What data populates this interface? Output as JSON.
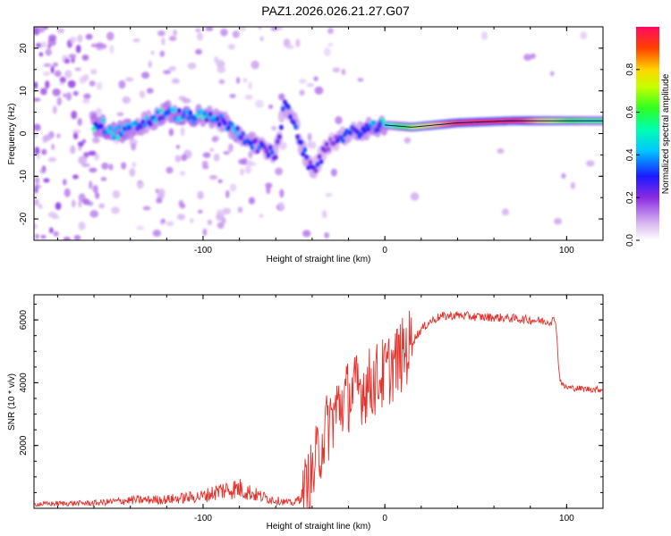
{
  "title": "PAZ1.2026.026.21.27.G07",
  "colors": {
    "accent": "#e8302b",
    "frame": "#000000"
  },
  "chart_data": [
    {
      "type": "heatmap",
      "title": "PAZ1.2026.026.21.27.G07",
      "xlabel": "Height of straight line (km)",
      "ylabel": "Frequency (Hz)",
      "xlim": [
        -193,
        120
      ],
      "ylim": [
        -25,
        25
      ],
      "xticks": [
        -100,
        0,
        100
      ],
      "xtick_labels": [
        "-100",
        "0",
        "100"
      ],
      "yticks": [
        -20,
        -10,
        0,
        10,
        20
      ],
      "ytick_labels": [
        "-20",
        "-10",
        "0",
        "10",
        "20"
      ],
      "colorbar": {
        "label": "Normalized spectral amplitude",
        "range": [
          0,
          1
        ],
        "ticks": [
          0,
          0.2,
          0.4,
          0.6,
          0.8
        ],
        "tick_labels": [
          "0.0",
          "0.2",
          "0.4",
          "0.6",
          "0.8"
        ]
      },
      "ridge": [
        {
          "x": -155,
          "f": 2,
          "amp": 0.45
        },
        {
          "x": -150,
          "f": 0,
          "amp": 0.5
        },
        {
          "x": -140,
          "f": 1,
          "amp": 0.4
        },
        {
          "x": -130,
          "f": 3,
          "amp": 0.35
        },
        {
          "x": -120,
          "f": 5,
          "amp": 0.4
        },
        {
          "x": -110,
          "f": 4,
          "amp": 0.45
        },
        {
          "x": -100,
          "f": 4,
          "amp": 0.42
        },
        {
          "x": -90,
          "f": 3,
          "amp": 0.38
        },
        {
          "x": -80,
          "f": 0,
          "amp": 0.35
        },
        {
          "x": -70,
          "f": -3,
          "amp": 0.32
        },
        {
          "x": -60,
          "f": -5,
          "amp": 0.3
        },
        {
          "x": -55,
          "f": 7,
          "amp": 0.28
        },
        {
          "x": -50,
          "f": 3,
          "amp": 0.3
        },
        {
          "x": -45,
          "f": -4,
          "amp": 0.3
        },
        {
          "x": -40,
          "f": -9,
          "amp": 0.28
        },
        {
          "x": -30,
          "f": -2,
          "amp": 0.25
        },
        {
          "x": -20,
          "f": 0,
          "amp": 0.3
        },
        {
          "x": -10,
          "f": 1,
          "amp": 0.38
        },
        {
          "x": 0,
          "f": 2,
          "amp": 0.45
        },
        {
          "x": 15,
          "f": 1.5,
          "amp": 0.7
        },
        {
          "x": 40,
          "f": 2.5,
          "amp": 0.9
        },
        {
          "x": 70,
          "f": 3,
          "amp": 0.95
        },
        {
          "x": 90,
          "f": 3,
          "amp": 0.75
        },
        {
          "x": 110,
          "f": 3,
          "amp": 0.55
        }
      ]
    },
    {
      "type": "line",
      "xlabel": "Height of straight line (km)",
      "ylabel": "SNR (10 * v/v)",
      "xlim": [
        -193,
        120
      ],
      "ylim": [
        0,
        6800
      ],
      "xticks": [
        -100,
        0,
        100
      ],
      "xtick_labels": [
        "-100",
        "0",
        "100"
      ],
      "yticks": [
        2000,
        4000,
        6000
      ],
      "ytick_labels": [
        "2000",
        "4000",
        "6000"
      ],
      "series": [
        {
          "name": "SNR",
          "color": "#e8302b",
          "x": [
            -193,
            -180,
            -160,
            -140,
            -120,
            -100,
            -90,
            -80,
            -70,
            -60,
            -50,
            -45,
            -40,
            -35,
            -30,
            -25,
            -20,
            -15,
            -10,
            -5,
            0,
            5,
            10,
            15,
            20,
            25,
            30,
            40,
            50,
            60,
            70,
            80,
            90,
            94,
            96,
            98,
            100,
            110,
            120
          ],
          "y": [
            100,
            120,
            130,
            200,
            220,
            300,
            450,
            500,
            320,
            200,
            120,
            350,
            1000,
            2100,
            2800,
            3300,
            3600,
            3800,
            3900,
            4100,
            4300,
            4600,
            4900,
            5300,
            5700,
            5950,
            6100,
            6150,
            6100,
            6080,
            6050,
            6000,
            5950,
            6000,
            4200,
            3900,
            3850,
            3800,
            3780
          ]
        }
      ]
    }
  ]
}
